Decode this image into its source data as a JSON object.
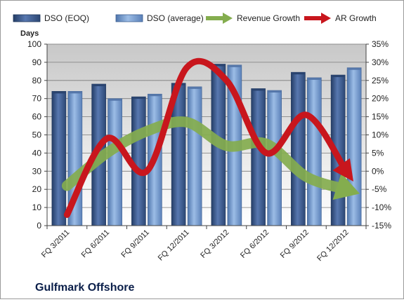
{
  "chart_data": {
    "type": "bar",
    "title": "",
    "company_label": "Gulfmark Offshore",
    "ylabel": "Days",
    "y2label": "",
    "ylim": [
      0,
      100
    ],
    "y_ticks": [
      "0",
      "10",
      "20",
      "30",
      "40",
      "50",
      "60",
      "70",
      "80",
      "90",
      "100"
    ],
    "y2lim": [
      -15,
      35
    ],
    "y2_ticks": [
      "-15%",
      "-10%",
      "-5%",
      "0%",
      "5%",
      "10%",
      "15%",
      "20%",
      "25%",
      "30%",
      "35%"
    ],
    "y2_tick_values": [
      -15,
      -10,
      -5,
      0,
      5,
      10,
      15,
      20,
      25,
      30,
      35
    ],
    "categories": [
      "FQ 3/2011",
      "FQ 6/2011",
      "FQ 9/2011",
      "FQ 12/2011",
      "FQ 3/2012",
      "FQ 6/2012",
      "FQ 9/2012",
      "FQ 12/2012"
    ],
    "series": [
      {
        "name": "DSO (EOQ)",
        "type": "bar",
        "axis": "left",
        "values": [
          74,
          78,
          71,
          78.5,
          89,
          75.5,
          84.5,
          83
        ]
      },
      {
        "name": "DSO (average)",
        "type": "bar",
        "axis": "left",
        "values": [
          74,
          70,
          72.5,
          76.5,
          88.5,
          74.5,
          81.5,
          87
        ]
      },
      {
        "name": "Revenue Growth",
        "type": "line",
        "axis": "right",
        "style": "arrow",
        "values": [
          -4,
          5,
          11,
          13.5,
          7,
          7.5,
          -1.5,
          -5
        ]
      },
      {
        "name": "AR Growth",
        "type": "line",
        "axis": "right",
        "style": "arrow",
        "values": [
          -12,
          9,
          0,
          28.5,
          25,
          5,
          15.5,
          0
        ]
      }
    ],
    "legend_position": "top",
    "grid": {
      "horizontal": true,
      "vertical": false
    },
    "colors": {
      "bar_eoq": "#3f5f96",
      "bar_avg": "#7fa5d8",
      "revenue_growth": "#84ad4e",
      "ar_growth": "#c8161d",
      "plot_top": "#c8c8c8",
      "plot_bottom": "#ffffff"
    }
  }
}
